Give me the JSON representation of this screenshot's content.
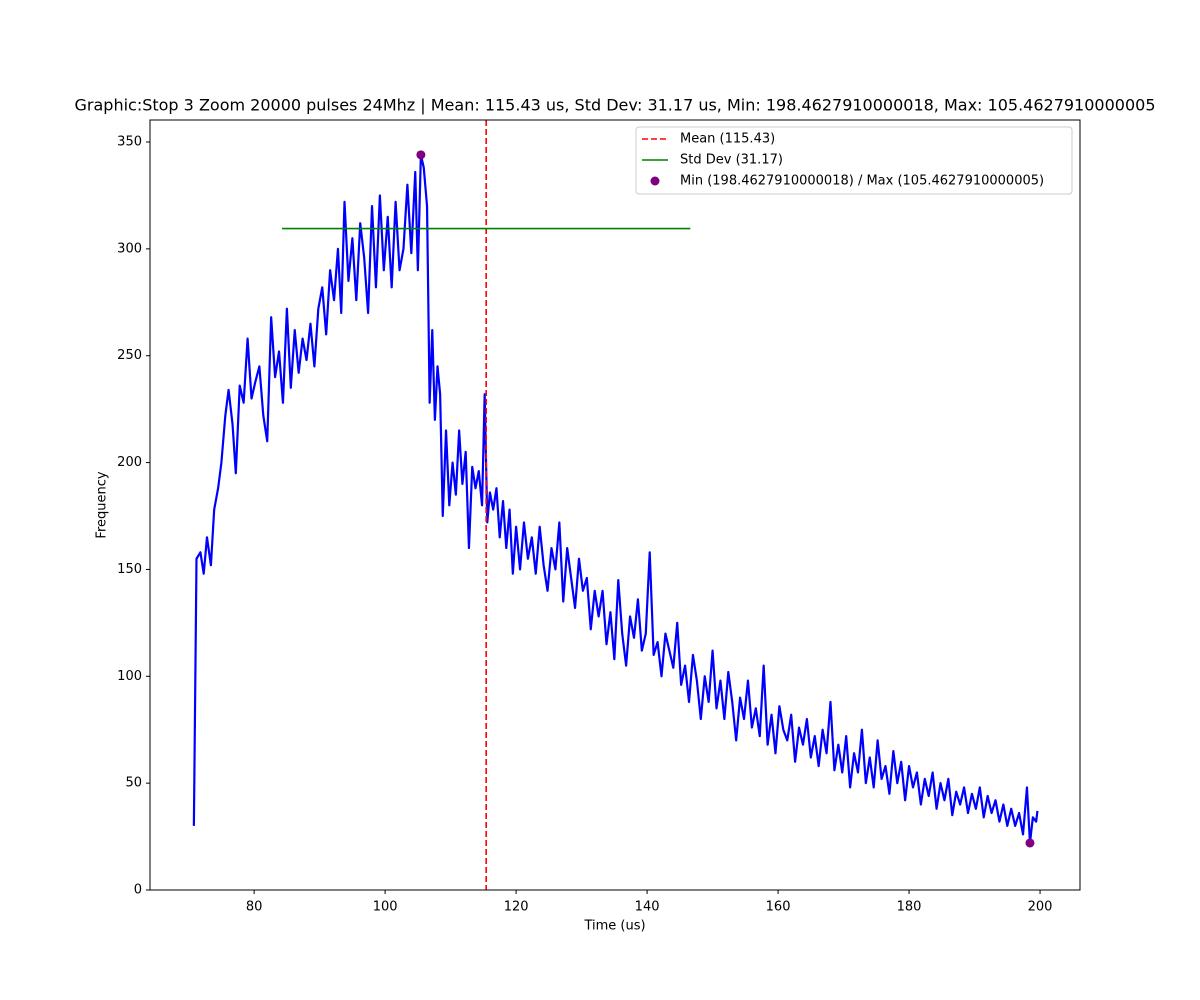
{
  "chart_data": {
    "type": "line",
    "title": "Graphic:Stop 3 Zoom 20000 pulses 24Mhz | Mean: 115.43 us, Std Dev: 31.17 us, Min: 198.4627910000018, Max: 105.4627910000005",
    "x_label": "Time (us)",
    "y_label": "Frequency",
    "xlim": [
      64.1,
      206.1
    ],
    "ylim": [
      0,
      360.3
    ],
    "xticks": [
      80,
      100,
      120,
      140,
      160,
      180,
      200
    ],
    "yticks": [
      0,
      50,
      100,
      150,
      200,
      250,
      300,
      350
    ],
    "legend": "upper right",
    "x": [
      70.8,
      71.2,
      71.8,
      72.3,
      72.8,
      73.4,
      73.9,
      74.5,
      75.0,
      75.6,
      76.1,
      76.7,
      77.2,
      77.8,
      78.4,
      79.0,
      79.6,
      80.2,
      80.8,
      81.4,
      82.0,
      82.6,
      83.2,
      83.8,
      84.4,
      85.0,
      85.6,
      86.2,
      86.8,
      87.4,
      88.0,
      88.6,
      89.2,
      89.8,
      90.4,
      91.0,
      91.6,
      92.2,
      92.8,
      93.3,
      93.8,
      94.4,
      95.0,
      95.6,
      96.2,
      96.8,
      97.4,
      98.0,
      98.6,
      99.2,
      99.8,
      100.4,
      101.0,
      101.6,
      102.2,
      102.8,
      103.4,
      104.0,
      104.6,
      105.0,
      105.46,
      105.9,
      106.4,
      106.8,
      107.2,
      107.6,
      108.0,
      108.4,
      108.8,
      109.3,
      109.8,
      110.3,
      110.8,
      111.3,
      111.8,
      112.3,
      112.8,
      113.3,
      113.8,
      114.3,
      114.8,
      115.2,
      115.6,
      116.0,
      116.5,
      117.0,
      117.5,
      118.0,
      118.5,
      119.0,
      119.5,
      120.0,
      120.6,
      121.2,
      121.8,
      122.4,
      123.0,
      123.6,
      124.2,
      124.8,
      125.4,
      126.0,
      126.6,
      127.2,
      127.8,
      128.4,
      129.0,
      129.6,
      130.2,
      130.8,
      131.4,
      132.0,
      132.6,
      133.2,
      133.8,
      134.4,
      135.0,
      135.6,
      136.2,
      136.8,
      137.4,
      138.0,
      138.6,
      139.2,
      139.8,
      140.4,
      141.0,
      141.6,
      142.2,
      142.8,
      143.4,
      144.0,
      144.6,
      145.2,
      145.8,
      146.4,
      147.0,
      147.6,
      148.2,
      148.8,
      149.4,
      150.0,
      150.6,
      151.2,
      151.8,
      152.4,
      153.0,
      153.6,
      154.2,
      154.8,
      155.4,
      156.0,
      156.6,
      157.2,
      157.8,
      158.4,
      159.0,
      159.6,
      160.2,
      160.8,
      161.4,
      162.0,
      162.6,
      163.2,
      163.8,
      164.4,
      165.0,
      165.6,
      166.2,
      166.8,
      167.4,
      168.0,
      168.6,
      169.2,
      169.8,
      170.4,
      171.0,
      171.6,
      172.2,
      172.8,
      173.4,
      174.0,
      174.6,
      175.2,
      175.8,
      176.4,
      177.0,
      177.6,
      178.2,
      178.8,
      179.4,
      180.0,
      180.6,
      181.2,
      181.8,
      182.4,
      183.0,
      183.6,
      184.2,
      184.8,
      185.4,
      186.0,
      186.6,
      187.2,
      187.8,
      188.4,
      189.0,
      189.6,
      190.2,
      190.8,
      191.4,
      192.0,
      192.6,
      193.2,
      193.8,
      194.4,
      195.0,
      195.6,
      196.2,
      196.8,
      197.4,
      198.0,
      198.46,
      198.9,
      199.4,
      199.6
    ],
    "series": [
      {
        "color": "#0000ff",
        "values": [
          30,
          155,
          158,
          148,
          165,
          152,
          178,
          188,
          200,
          222,
          234,
          218,
          195,
          236,
          228,
          258,
          230,
          238,
          245,
          222,
          210,
          268,
          240,
          252,
          228,
          272,
          235,
          262,
          242,
          258,
          248,
          265,
          245,
          272,
          282,
          260,
          290,
          276,
          300,
          270,
          322,
          285,
          305,
          276,
          312,
          296,
          270,
          320,
          282,
          325,
          290,
          315,
          282,
          322,
          290,
          300,
          330,
          298,
          336,
          290,
          344,
          338,
          320,
          228,
          262,
          220,
          245,
          232,
          175,
          215,
          180,
          200,
          185,
          215,
          190,
          205,
          160,
          198,
          188,
          196,
          180,
          232,
          172,
          186,
          178,
          188,
          165,
          182,
          160,
          178,
          148,
          170,
          150,
          172,
          155,
          165,
          148,
          170,
          152,
          140,
          160,
          150,
          172,
          135,
          160,
          146,
          132,
          155,
          140,
          146,
          122,
          140,
          128,
          140,
          115,
          130,
          108,
          145,
          120,
          105,
          128,
          118,
          136,
          112,
          120,
          158,
          110,
          116,
          100,
          120,
          112,
          104,
          125,
          96,
          105,
          88,
          110,
          98,
          80,
          100,
          88,
          112,
          85,
          98,
          80,
          102,
          88,
          70,
          90,
          80,
          98,
          76,
          85,
          72,
          105,
          68,
          82,
          64,
          86,
          75,
          70,
          82,
          60,
          76,
          68,
          80,
          62,
          72,
          58,
          75,
          64,
          88,
          56,
          68,
          55,
          72,
          48,
          64,
          55,
          75,
          50,
          62,
          48,
          70,
          52,
          58,
          45,
          65,
          50,
          60,
          42,
          58,
          48,
          55,
          40,
          52,
          44,
          55,
          38,
          50,
          42,
          52,
          35,
          46,
          40,
          48,
          36,
          45,
          38,
          48,
          34,
          44,
          36,
          42,
          32,
          40,
          30,
          38,
          30,
          36,
          26,
          48,
          22,
          34,
          32,
          37
        ]
      }
    ],
    "mean": {
      "name": "Mean (115.43)",
      "value": 115.43,
      "color": "#ff0000"
    },
    "std_dev": {
      "name": "Std Dev (31.17)",
      "y": 309.5,
      "xmin": 84.26,
      "xmax": 146.6,
      "color": "#008000"
    },
    "min_max": {
      "name": "Min (198.4627910000018) / Max (105.4627910000005)",
      "x": [
        105.46,
        198.46
      ],
      "y": [
        344,
        22
      ],
      "color": "#800080"
    }
  }
}
